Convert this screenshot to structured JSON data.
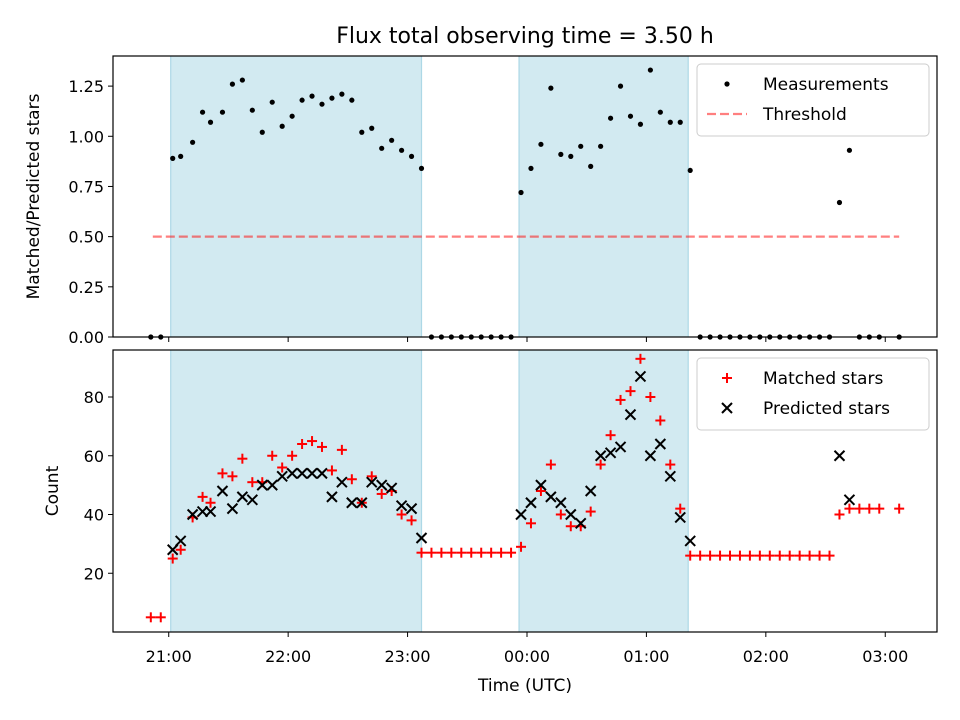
{
  "title": "Flux total observing time = 3.50 h",
  "colors": {
    "shade": "#add8e6",
    "threshold": "#ff0000",
    "matched": "#ff0000",
    "predicted": "#000000",
    "measurements": "#000000"
  },
  "xaxis": {
    "label": "Time (UTC)",
    "range": [
      "20:32",
      "03:26"
    ],
    "ticks": [
      "21:00",
      "22:00",
      "23:00",
      "00:00",
      "01:00",
      "02:00",
      "03:00"
    ]
  },
  "chart_data": [
    {
      "type": "scatter",
      "panel": "top",
      "ylabel": "Matched/Predicted stars",
      "ylim": [
        0,
        1.4
      ],
      "yticks": [
        "0.00",
        "0.25",
        "0.50",
        "0.75",
        "1.00",
        "1.25"
      ],
      "legend_position": "upper right",
      "shaded_intervals": [
        [
          "21:01",
          "23:07"
        ],
        [
          "23:56",
          "01:21"
        ]
      ],
      "threshold": {
        "name": "Threshold",
        "value": 0.5,
        "x_range": [
          "20:52",
          "03:07"
        ],
        "style": "dashed"
      },
      "series": [
        {
          "name": "Measurements",
          "marker": "dot",
          "points": [
            [
              "20:51",
              0.0
            ],
            [
              "20:56",
              0.0
            ],
            [
              "21:02",
              0.89
            ],
            [
              "21:06",
              0.9
            ],
            [
              "21:12",
              0.97
            ],
            [
              "21:17",
              1.12
            ],
            [
              "21:21",
              1.07
            ],
            [
              "21:27",
              1.12
            ],
            [
              "21:32",
              1.26
            ],
            [
              "21:37",
              1.28
            ],
            [
              "21:42",
              1.13
            ],
            [
              "21:47",
              1.02
            ],
            [
              "21:52",
              1.17
            ],
            [
              "21:57",
              1.05
            ],
            [
              "22:02",
              1.1
            ],
            [
              "22:07",
              1.18
            ],
            [
              "22:12",
              1.2
            ],
            [
              "22:17",
              1.16
            ],
            [
              "22:22",
              1.19
            ],
            [
              "22:27",
              1.21
            ],
            [
              "22:32",
              1.18
            ],
            [
              "22:37",
              1.02
            ],
            [
              "22:42",
              1.04
            ],
            [
              "22:47",
              0.94
            ],
            [
              "22:52",
              0.98
            ],
            [
              "22:57",
              0.93
            ],
            [
              "23:02",
              0.9
            ],
            [
              "23:07",
              0.84
            ],
            [
              "23:12",
              0.0
            ],
            [
              "23:17",
              0.0
            ],
            [
              "23:22",
              0.0
            ],
            [
              "23:27",
              0.0
            ],
            [
              "23:32",
              0.0
            ],
            [
              "23:37",
              0.0
            ],
            [
              "23:42",
              0.0
            ],
            [
              "23:47",
              0.0
            ],
            [
              "23:52",
              0.0
            ],
            [
              "23:57",
              0.72
            ],
            [
              "00:02",
              0.84
            ],
            [
              "00:07",
              0.96
            ],
            [
              "00:12",
              1.24
            ],
            [
              "00:17",
              0.91
            ],
            [
              "00:22",
              0.9
            ],
            [
              "00:27",
              0.95
            ],
            [
              "00:32",
              0.85
            ],
            [
              "00:37",
              0.95
            ],
            [
              "00:42",
              1.09
            ],
            [
              "00:47",
              1.25
            ],
            [
              "00:52",
              1.1
            ],
            [
              "00:57",
              1.06
            ],
            [
              "01:02",
              1.33
            ],
            [
              "01:07",
              1.12
            ],
            [
              "01:12",
              1.07
            ],
            [
              "01:17",
              1.07
            ],
            [
              "01:22",
              0.83
            ],
            [
              "01:27",
              0.0
            ],
            [
              "01:32",
              0.0
            ],
            [
              "01:37",
              0.0
            ],
            [
              "01:42",
              0.0
            ],
            [
              "01:47",
              0.0
            ],
            [
              "01:52",
              0.0
            ],
            [
              "01:57",
              0.0
            ],
            [
              "02:02",
              0.0
            ],
            [
              "02:07",
              0.0
            ],
            [
              "02:12",
              0.0
            ],
            [
              "02:17",
              0.0
            ],
            [
              "02:22",
              0.0
            ],
            [
              "02:27",
              0.0
            ],
            [
              "02:32",
              0.0
            ],
            [
              "02:37",
              0.67
            ],
            [
              "02:42",
              0.93
            ],
            [
              "02:47",
              0.0
            ],
            [
              "02:52",
              0.0
            ],
            [
              "02:57",
              0.0
            ],
            [
              "03:07",
              0.0
            ]
          ]
        }
      ]
    },
    {
      "type": "scatter",
      "panel": "bottom",
      "ylabel": "Count",
      "ylim": [
        0,
        96
      ],
      "yticks": [
        "20",
        "40",
        "60",
        "80"
      ],
      "legend_position": "upper right",
      "shaded_intervals": [
        [
          "21:01",
          "23:07"
        ],
        [
          "23:56",
          "01:21"
        ]
      ],
      "series": [
        {
          "name": "Matched stars",
          "marker": "plus",
          "points": [
            [
              "20:51",
              5
            ],
            [
              "20:56",
              5
            ],
            [
              "21:02",
              25
            ],
            [
              "21:06",
              28
            ],
            [
              "21:12",
              39
            ],
            [
              "21:17",
              46
            ],
            [
              "21:21",
              44
            ],
            [
              "21:27",
              54
            ],
            [
              "21:32",
              53
            ],
            [
              "21:37",
              59
            ],
            [
              "21:42",
              51
            ],
            [
              "21:47",
              51
            ],
            [
              "21:52",
              60
            ],
            [
              "21:57",
              56
            ],
            [
              "22:02",
              60
            ],
            [
              "22:07",
              64
            ],
            [
              "22:12",
              65
            ],
            [
              "22:17",
              63
            ],
            [
              "22:22",
              55
            ],
            [
              "22:27",
              62
            ],
            [
              "22:32",
              52
            ],
            [
              "22:37",
              44
            ],
            [
              "22:42",
              53
            ],
            [
              "22:47",
              47
            ],
            [
              "22:52",
              48
            ],
            [
              "22:57",
              40
            ],
            [
              "23:02",
              38
            ],
            [
              "23:07",
              27
            ],
            [
              "23:12",
              27
            ],
            [
              "23:17",
              27
            ],
            [
              "23:22",
              27
            ],
            [
              "23:27",
              27
            ],
            [
              "23:32",
              27
            ],
            [
              "23:37",
              27
            ],
            [
              "23:42",
              27
            ],
            [
              "23:47",
              27
            ],
            [
              "23:52",
              27
            ],
            [
              "23:57",
              29
            ],
            [
              "00:02",
              37
            ],
            [
              "00:07",
              48
            ],
            [
              "00:12",
              57
            ],
            [
              "00:17",
              40
            ],
            [
              "00:22",
              36
            ],
            [
              "00:27",
              36
            ],
            [
              "00:32",
              41
            ],
            [
              "00:37",
              57
            ],
            [
              "00:42",
              67
            ],
            [
              "00:47",
              79
            ],
            [
              "00:52",
              82
            ],
            [
              "00:57",
              93
            ],
            [
              "01:02",
              80
            ],
            [
              "01:07",
              72
            ],
            [
              "01:12",
              57
            ],
            [
              "01:17",
              42
            ],
            [
              "01:22",
              26
            ],
            [
              "01:27",
              26
            ],
            [
              "01:32",
              26
            ],
            [
              "01:37",
              26
            ],
            [
              "01:42",
              26
            ],
            [
              "01:47",
              26
            ],
            [
              "01:52",
              26
            ],
            [
              "01:57",
              26
            ],
            [
              "02:02",
              26
            ],
            [
              "02:07",
              26
            ],
            [
              "02:12",
              26
            ],
            [
              "02:17",
              26
            ],
            [
              "02:22",
              26
            ],
            [
              "02:27",
              26
            ],
            [
              "02:32",
              26
            ],
            [
              "02:37",
              40
            ],
            [
              "02:42",
              42
            ],
            [
              "02:47",
              42
            ],
            [
              "02:52",
              42
            ],
            [
              "02:57",
              42
            ],
            [
              "03:07",
              42
            ]
          ]
        },
        {
          "name": "Predicted stars",
          "marker": "x",
          "points": [
            [
              "21:02",
              28
            ],
            [
              "21:06",
              31
            ],
            [
              "21:12",
              40
            ],
            [
              "21:17",
              41
            ],
            [
              "21:21",
              41
            ],
            [
              "21:27",
              48
            ],
            [
              "21:32",
              42
            ],
            [
              "21:37",
              46
            ],
            [
              "21:42",
              45
            ],
            [
              "21:47",
              50
            ],
            [
              "21:52",
              50
            ],
            [
              "21:57",
              53
            ],
            [
              "22:02",
              54
            ],
            [
              "22:07",
              54
            ],
            [
              "22:12",
              54
            ],
            [
              "22:17",
              54
            ],
            [
              "22:22",
              46
            ],
            [
              "22:27",
              51
            ],
            [
              "22:32",
              44
            ],
            [
              "22:37",
              44
            ],
            [
              "22:42",
              51
            ],
            [
              "22:47",
              50
            ],
            [
              "22:52",
              49
            ],
            [
              "22:57",
              43
            ],
            [
              "23:02",
              42
            ],
            [
              "23:07",
              32
            ],
            [
              "23:57",
              40
            ],
            [
              "00:02",
              44
            ],
            [
              "00:07",
              50
            ],
            [
              "00:12",
              46
            ],
            [
              "00:17",
              44
            ],
            [
              "00:22",
              40
            ],
            [
              "00:27",
              37
            ],
            [
              "00:32",
              48
            ],
            [
              "00:37",
              60
            ],
            [
              "00:42",
              61
            ],
            [
              "00:47",
              63
            ],
            [
              "00:52",
              74
            ],
            [
              "00:57",
              87
            ],
            [
              "01:02",
              60
            ],
            [
              "01:07",
              64
            ],
            [
              "01:12",
              53
            ],
            [
              "01:17",
              39
            ],
            [
              "01:22",
              31
            ],
            [
              "02:37",
              60
            ],
            [
              "02:42",
              45
            ]
          ]
        }
      ]
    }
  ]
}
